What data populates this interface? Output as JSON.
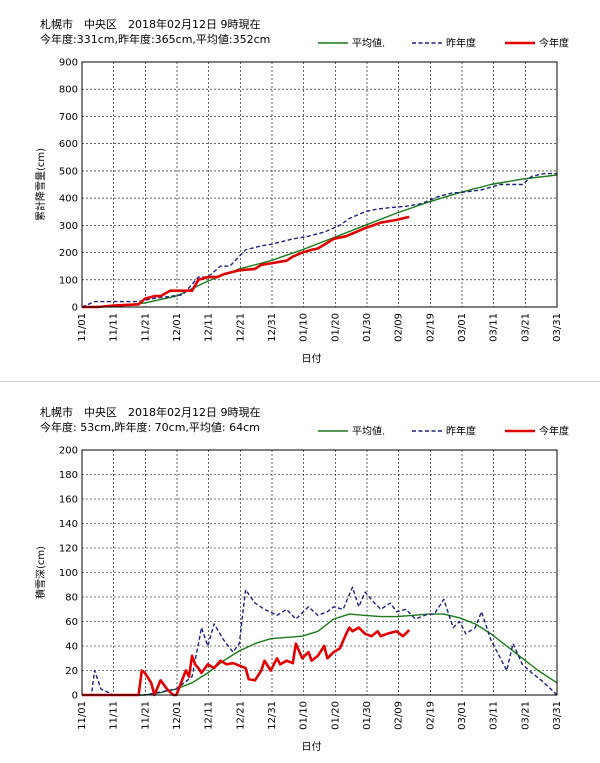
{
  "chart_data": [
    {
      "type": "line",
      "header_line1": "札幌市　中央区　2018年02月12日 9時現在",
      "header_line2": "今年度:331cm,昨年度:365cm,平均値:352cm",
      "xlabel": "日付",
      "ylabel": "累計降雪量(cm)",
      "ylim": [
        0,
        900
      ],
      "yticks": [
        "0",
        "100",
        "200",
        "300",
        "400",
        "500",
        "600",
        "700",
        "800",
        "900"
      ],
      "x_tick_labels": [
        "11/01",
        "11/11",
        "11/21",
        "12/01",
        "12/11",
        "12/21",
        "12/31",
        "01/10",
        "01/20",
        "01/30",
        "02/09",
        "02/19",
        "03/01",
        "03/11",
        "03/21",
        "03/31"
      ],
      "x_days": [
        0,
        151
      ],
      "grid": true,
      "legend_position": "top-right",
      "series": [
        {
          "name": "平均値",
          "color": "#1a7a1a",
          "style": "solid",
          "x": [
            0,
            10,
            20,
            30,
            40,
            50,
            60,
            70,
            80,
            90,
            100,
            110,
            120,
            130,
            140,
            151
          ],
          "y": [
            0,
            3,
            15,
            40,
            95,
            140,
            170,
            210,
            255,
            300,
            345,
            385,
            420,
            450,
            470,
            485
          ]
        },
        {
          "name": "昨年度",
          "color": "#1a237e",
          "style": "dashed",
          "x": [
            0,
            4,
            8,
            18,
            22,
            32,
            37,
            40,
            44,
            47,
            52,
            57,
            60,
            67,
            72,
            77,
            82,
            85,
            90,
            94,
            98,
            103,
            108,
            113,
            118,
            120,
            127,
            133,
            137,
            140,
            143,
            147,
            151
          ],
          "y": [
            0,
            20,
            20,
            20,
            30,
            45,
            110,
            110,
            150,
            150,
            210,
            225,
            230,
            250,
            260,
            275,
            300,
            325,
            350,
            360,
            365,
            370,
            380,
            405,
            420,
            420,
            430,
            450,
            450,
            450,
            480,
            490,
            490
          ]
        },
        {
          "name": "今年度",
          "color": "#e00000",
          "style": "solid",
          "x": [
            0,
            5,
            10,
            18,
            20,
            23,
            25,
            28,
            30,
            35,
            37,
            40,
            43,
            45,
            50,
            55,
            57,
            60,
            65,
            67,
            70,
            73,
            75,
            80,
            84,
            86,
            88,
            90,
            95,
            100,
            104
          ],
          "y": [
            0,
            0,
            5,
            10,
            30,
            40,
            40,
            60,
            60,
            60,
            100,
            110,
            110,
            120,
            135,
            140,
            155,
            160,
            170,
            185,
            200,
            210,
            215,
            250,
            260,
            270,
            280,
            290,
            310,
            320,
            331
          ]
        }
      ]
    },
    {
      "type": "line",
      "header_line1": "札幌市　中央区　2018年02月12日 9時現在",
      "header_line2": "今年度: 53cm,昨年度: 70cm,平均値: 64cm",
      "xlabel": "日付",
      "ylabel": "積雪深(cm)",
      "ylim": [
        0,
        200
      ],
      "yticks": [
        "0",
        "20",
        "40",
        "60",
        "80",
        "100",
        "120",
        "140",
        "160",
        "180",
        "200"
      ],
      "x_tick_labels": [
        "11/01",
        "11/11",
        "11/21",
        "12/01",
        "12/11",
        "12/21",
        "12/31",
        "01/10",
        "01/20",
        "01/30",
        "02/09",
        "02/19",
        "03/01",
        "03/11",
        "03/21",
        "03/31"
      ],
      "x_days": [
        0,
        151
      ],
      "grid": true,
      "legend_position": "top-right",
      "series": [
        {
          "name": "平均値",
          "color": "#1a7a1a",
          "style": "solid",
          "x": [
            0,
            20,
            25,
            30,
            35,
            40,
            45,
            50,
            55,
            60,
            65,
            70,
            75,
            80,
            85,
            90,
            95,
            100,
            105,
            110,
            115,
            120,
            125,
            130,
            135,
            140,
            145,
            151
          ],
          "y": [
            0,
            0,
            2,
            5,
            10,
            18,
            28,
            36,
            42,
            46,
            47,
            48,
            52,
            62,
            66,
            65,
            64,
            64,
            65,
            66,
            66,
            63,
            58,
            50,
            40,
            30,
            20,
            10
          ]
        },
        {
          "name": "昨年度",
          "color": "#1a237e",
          "style": "dashed",
          "x": [
            0,
            3,
            4,
            6,
            10,
            20,
            30,
            35,
            38,
            40,
            42,
            45,
            48,
            50,
            52,
            55,
            58,
            62,
            65,
            68,
            72,
            75,
            78,
            80,
            83,
            86,
            88,
            90,
            93,
            95,
            98,
            100,
            103,
            106,
            110,
            112,
            115,
            118,
            120,
            122,
            125,
            127,
            130,
            133,
            135,
            137,
            140,
            143,
            146,
            149,
            151
          ],
          "y": [
            0,
            0,
            20,
            5,
            0,
            0,
            5,
            15,
            55,
            40,
            58,
            45,
            35,
            42,
            86,
            75,
            70,
            65,
            70,
            62,
            72,
            65,
            68,
            72,
            70,
            88,
            72,
            84,
            75,
            70,
            75,
            68,
            70,
            62,
            66,
            66,
            78,
            55,
            60,
            50,
            55,
            68,
            45,
            30,
            20,
            42,
            25,
            18,
            12,
            5,
            0
          ]
        },
        {
          "name": "今年度",
          "color": "#e00000",
          "style": "solid",
          "x": [
            0,
            5,
            18,
            19,
            20,
            22,
            23,
            25,
            27,
            29,
            30,
            33,
            34,
            35,
            36,
            37,
            38,
            40,
            42,
            44,
            46,
            48,
            50,
            52,
            53,
            55,
            57,
            58,
            60,
            62,
            63,
            65,
            67,
            68,
            70,
            72,
            73,
            75,
            77,
            78,
            80,
            82,
            84,
            85,
            86,
            88,
            90,
            92,
            94,
            95,
            97,
            100,
            102,
            104
          ],
          "y": [
            0,
            0,
            0,
            20,
            18,
            10,
            0,
            12,
            5,
            0,
            0,
            20,
            15,
            32,
            25,
            22,
            18,
            25,
            22,
            28,
            25,
            26,
            24,
            22,
            13,
            12,
            20,
            28,
            20,
            30,
            25,
            28,
            26,
            42,
            30,
            35,
            28,
            32,
            40,
            30,
            35,
            38,
            50,
            55,
            52,
            55,
            50,
            48,
            52,
            48,
            50,
            52,
            48,
            53
          ]
        }
      ]
    }
  ]
}
